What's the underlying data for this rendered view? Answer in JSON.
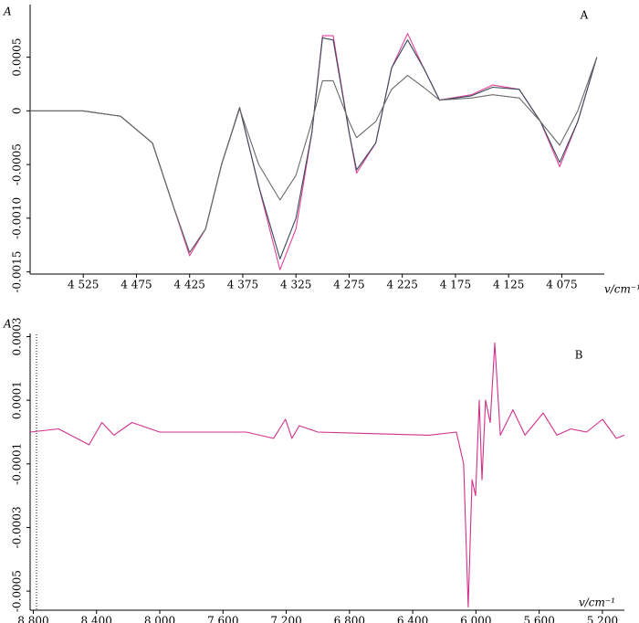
{
  "chart_data": [
    {
      "type": "line",
      "panel_label": "A",
      "ylabel": "A",
      "xlabel": "v/cm⁻¹",
      "x": [
        4575,
        4525,
        4490,
        4460,
        4440,
        4425,
        4410,
        4395,
        4378,
        4360,
        4340,
        4325,
        4310,
        4300,
        4290,
        4275,
        4268,
        4250,
        4235,
        4220,
        4205,
        4190,
        4160,
        4140,
        4115,
        4095,
        4077,
        4060,
        4042
      ],
      "series": [
        {
          "color": "#e0409a",
          "values": [
            0,
            0,
            -5e-05,
            -0.0003,
            -0.0009,
            -0.00135,
            -0.0011,
            -0.0005,
            3e-05,
            -0.0007,
            -0.00148,
            -0.0011,
            -0.0002,
            0.0007,
            0.0007,
            -0.0002,
            -0.00058,
            -0.0003,
            0.0004,
            0.00072,
            0.0004,
            0.0001,
            0.00015,
            0.00024,
            0.0002,
            -0.0001,
            -0.00052,
            -0.0001,
            0.0005
          ]
        },
        {
          "color": "#3a4a5a",
          "values": [
            0,
            0,
            -5e-05,
            -0.0003,
            -0.0009,
            -0.00132,
            -0.0011,
            -0.0005,
            3e-05,
            -0.0007,
            -0.00138,
            -0.001,
            -0.0002,
            0.00068,
            0.00066,
            -0.0002,
            -0.00055,
            -0.0003,
            0.0004,
            0.00066,
            0.0004,
            0.0001,
            0.00014,
            0.00022,
            0.0002,
            -0.0001,
            -0.00048,
            -0.0001,
            0.0005
          ]
        },
        {
          "color": "#6a6a6a",
          "values": [
            0,
            0,
            -5e-05,
            -0.0003,
            -0.0009,
            -0.00132,
            -0.0011,
            -0.0005,
            2e-05,
            -0.0005,
            -0.00083,
            -0.0006,
            -0.0001,
            0.00028,
            0.00028,
            -0.0001,
            -0.00025,
            -0.0001,
            0.0002,
            0.00033,
            0.00022,
            0.0001,
            0.00012,
            0.00015,
            0.00012,
            -0.0001,
            -0.00032,
            0,
            0.0005
          ]
        }
      ],
      "xlim": [
        4575,
        4035
      ],
      "ylim": [
        -0.00152,
        0.00099
      ],
      "xticks": [
        {
          "value": 4525,
          "label": "4 525"
        },
        {
          "value": 4475,
          "label": "4 475"
        },
        {
          "value": 4425,
          "label": "4 425"
        },
        {
          "value": 4375,
          "label": "4 375"
        },
        {
          "value": 4325,
          "label": "4 325"
        },
        {
          "value": 4275,
          "label": "4 275"
        },
        {
          "value": 4225,
          "label": "4 225"
        },
        {
          "value": 4175,
          "label": "4 175"
        },
        {
          "value": 4125,
          "label": "4 125"
        },
        {
          "value": 4075,
          "label": "4 075"
        }
      ],
      "yticks": [
        0.0005,
        0,
        -0.0005,
        {
          "value": -0.001,
          "label": "-0.0010"
        },
        -0.0015
      ]
    },
    {
      "type": "line",
      "panel_label": "B",
      "ylabel": "A",
      "xlabel": "v/cm⁻¹",
      "x": [
        8820,
        8640,
        8447,
        8366,
        8290,
        8176,
        8000,
        7453,
        7280,
        7205,
        7164,
        7118,
        7000,
        6297,
        6124,
        6078,
        6049,
        6025,
        6002,
        5979,
        5962,
        5939,
        5910,
        5881,
        5846,
        5766,
        5690,
        5575,
        5488,
        5400,
        5300,
        5199,
        5112,
        5061
      ],
      "series": [
        {
          "color": "#d0308a",
          "values": [
            0,
            1e-05,
            -4e-05,
            3e-05,
            -1e-05,
            3e-05,
            0,
            0,
            -2e-05,
            4e-05,
            -2e-05,
            2e-05,
            0,
            -1e-05,
            0,
            -0.0001,
            -0.00055,
            -0.00015,
            -0.0002,
            0.0001,
            -0.00015,
            0.0001,
            3e-05,
            0.00028,
            -1e-05,
            7e-05,
            -1e-05,
            6e-05,
            -1e-05,
            1e-05,
            0,
            4e-05,
            -2e-05,
            -1e-05
          ]
        }
      ],
      "xlim": [
        8820,
        5061
      ],
      "ylim": [
        -0.00056,
        0.00031
      ],
      "xticks": [
        {
          "value": 8800,
          "label": "8 800"
        },
        {
          "value": 8400,
          "label": "8 400"
        },
        {
          "value": 8000,
          "label": "8 000"
        },
        {
          "value": 7600,
          "label": "7 600"
        },
        {
          "value": 7200,
          "label": "7 200"
        },
        {
          "value": 6800,
          "label": "6 800"
        },
        {
          "value": 6400,
          "label": "6 400"
        },
        {
          "value": 6000,
          "label": "6 000"
        },
        {
          "value": 5600,
          "label": "5 600"
        },
        {
          "value": 5200,
          "label": "5 200"
        }
      ],
      "yticks": [
        0.0003,
        0.0001,
        -0.0001,
        -0.0003,
        -0.0005
      ]
    }
  ]
}
